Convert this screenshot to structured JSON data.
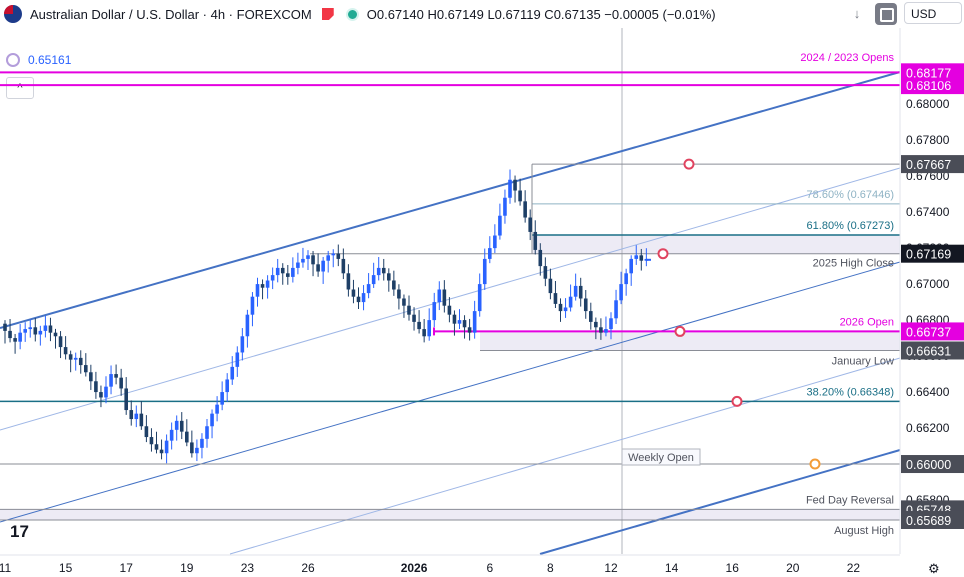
{
  "header": {
    "symbol": "Australian Dollar / U.S. Dollar · 4h · FOREXCOM",
    "ohlc": "O0.67140 H0.67149 L0.67119 C0.67135 −0.00005 (−0.01%)",
    "currency": "USD",
    "icons": [
      "australia-flag-icon",
      "flag-marker-icon",
      "market-open-icon",
      "chevron-down-icon",
      "settings-icon"
    ]
  },
  "indicator": {
    "value": "0.65161"
  },
  "collapse_label": "^",
  "logo": "17",
  "colors": {
    "up": "#2962ff",
    "down": "#1e3f66",
    "magenta": "#e400e0",
    "teal": "#1a6f86",
    "channel": "#4472c4",
    "grey": "#787b86",
    "zone": "#e8e6f2"
  },
  "chart_data": {
    "type": "candlestick",
    "timeframe": "4h",
    "ylim": [
      0.6555,
      0.6839
    ],
    "y_ticks": [
      "0.68000",
      "0.67800",
      "0.67600",
      "0.67400",
      "0.67200",
      "0.67000",
      "0.66800",
      "0.66600",
      "0.66400",
      "0.66200",
      "0.66000",
      "0.65800"
    ],
    "x_ticks": [
      {
        "label": "11",
        "i": 0
      },
      {
        "label": "15",
        "i": 12
      },
      {
        "label": "17",
        "i": 24
      },
      {
        "label": "19",
        "i": 36
      },
      {
        "label": "23",
        "i": 48
      },
      {
        "label": "26",
        "i": 60
      },
      {
        "label": "2026",
        "i": 81
      },
      {
        "label": "6",
        "i": 96
      },
      {
        "label": "8",
        "i": 108
      },
      {
        "label": "12",
        "i": 120
      },
      {
        "label": "14",
        "i": 132
      },
      {
        "label": "16",
        "i": 144
      },
      {
        "label": "20",
        "i": 156
      },
      {
        "label": "22",
        "i": 168
      }
    ],
    "candles_close": [
      0.6674,
      0.667,
      0.6668,
      0.6673,
      0.6675,
      0.6676,
      0.6672,
      0.6674,
      0.6677,
      0.6673,
      0.6671,
      0.6665,
      0.6661,
      0.6658,
      0.6659,
      0.6655,
      0.6651,
      0.6646,
      0.664,
      0.6637,
      0.6643,
      0.665,
      0.6648,
      0.6642,
      0.663,
      0.6625,
      0.6628,
      0.6621,
      0.6615,
      0.6611,
      0.6608,
      0.6606,
      0.6613,
      0.6619,
      0.6624,
      0.6618,
      0.6612,
      0.6606,
      0.6609,
      0.6614,
      0.6621,
      0.6628,
      0.6633,
      0.664,
      0.6647,
      0.6654,
      0.6662,
      0.6671,
      0.6683,
      0.6693,
      0.67,
      0.6698,
      0.6702,
      0.6705,
      0.6709,
      0.6706,
      0.6704,
      0.6709,
      0.6712,
      0.6714,
      0.6716,
      0.6711,
      0.6707,
      0.6713,
      0.6716,
      0.6717,
      0.6714,
      0.6706,
      0.6697,
      0.6693,
      0.669,
      0.6695,
      0.67,
      0.6705,
      0.6709,
      0.6706,
      0.6702,
      0.6697,
      0.6692,
      0.6688,
      0.6683,
      0.6679,
      0.6675,
      0.6671,
      0.668,
      0.669,
      0.6697,
      0.6688,
      0.6683,
      0.6678,
      0.668,
      0.6676,
      0.6673,
      0.6685,
      0.67,
      0.6714,
      0.672,
      0.6727,
      0.6738,
      0.6748,
      0.6758,
      0.6752,
      0.6746,
      0.6737,
      0.6729,
      0.6719,
      0.671,
      0.6703,
      0.6695,
      0.6689,
      0.6685,
      0.6687,
      0.6693,
      0.6699,
      0.6692,
      0.6685,
      0.6679,
      0.6676,
      0.6673,
      0.6675,
      0.6681,
      0.6691,
      0.67,
      0.6706,
      0.6714,
      0.6716,
      0.6713,
      0.6714
    ]
  },
  "levels": [
    {
      "price": 0.68106,
      "label": "",
      "axis": "0.68106",
      "style": "magenta",
      "x0": 0
    },
    {
      "price": 0.68177,
      "label": "",
      "axis": "0.68177",
      "style": "magenta",
      "x0": 0
    },
    {
      "price": 0.67667,
      "label": "",
      "axis": "0.67667",
      "style": "grey",
      "x0": 532
    },
    {
      "price": 0.67446,
      "label": "78.60% (0.67446)",
      "axis": "",
      "style": "fib-light",
      "x0": 532
    },
    {
      "price": 0.67273,
      "label": "61.80% (0.67273)",
      "axis": "",
      "style": "teal",
      "x0": 532
    },
    {
      "price": 0.67169,
      "label": "2025 High Close",
      "axis": "0.67169",
      "style": "grey",
      "x0": 310
    },
    {
      "price": 0.66737,
      "label": "2026 Open",
      "axis": "0.66737",
      "style": "magenta",
      "x0": 434
    },
    {
      "price": 0.66631,
      "label": "January Low",
      "axis": "0.66631",
      "style": "grey",
      "x0": 480
    },
    {
      "price": 0.66348,
      "label": "38.20% (0.66348)",
      "axis": "",
      "style": "teal",
      "x0": 0
    },
    {
      "price": 0.66,
      "label": "",
      "axis": "0.66000",
      "style": "grey",
      "x0": 0
    },
    {
      "price": 0.65748,
      "label": "Fed Day Reversal",
      "axis": "0.65748",
      "style": "grey",
      "x0": 0
    },
    {
      "price": 0.65689,
      "label": "August High",
      "axis": "0.65689",
      "style": "grey",
      "x0": 0
    }
  ],
  "annotations": {
    "opens": "2024 / 2023 Opens",
    "weekly_open": "Weekly Open"
  }
}
